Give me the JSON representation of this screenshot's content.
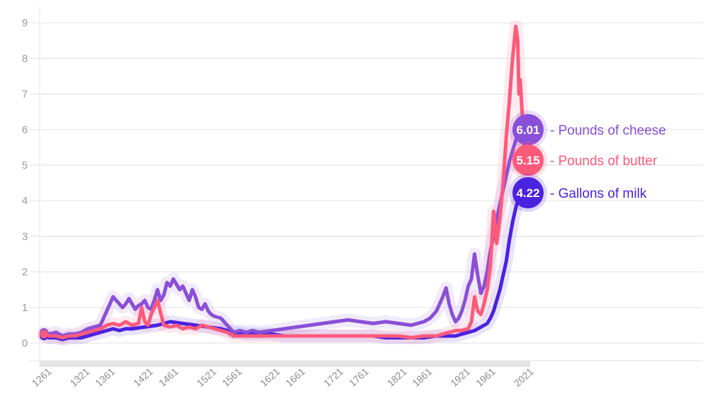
{
  "chart_data": {
    "type": "line",
    "title": "",
    "xlabel": "",
    "ylabel": "",
    "xlim": [
      1261,
      2021
    ],
    "ylim": [
      0,
      9
    ],
    "y_ticks": [
      "0",
      "1",
      "2",
      "3",
      "4",
      "5",
      "6",
      "7",
      "8",
      "9"
    ],
    "x_ticks": [
      "1261",
      "1321",
      "1361",
      "1421",
      "1461",
      "1521",
      "1561",
      "1621",
      "1661",
      "1721",
      "1761",
      "1821",
      "1861",
      "1921",
      "1961",
      "2021"
    ],
    "grid": "horizontal",
    "legend": "right, at line ends",
    "series": [
      {
        "name": "Pounds of cheese",
        "end_label": "6.01",
        "color": "#8a4fd8",
        "x": [
          1261,
          1270,
          1280,
          1290,
          1300,
          1310,
          1320,
          1330,
          1340,
          1350,
          1355,
          1360,
          1365,
          1370,
          1375,
          1380,
          1385,
          1390,
          1395,
          1400,
          1405,
          1410,
          1415,
          1420,
          1425,
          1430,
          1435,
          1440,
          1445,
          1450,
          1455,
          1460,
          1465,
          1470,
          1475,
          1480,
          1485,
          1490,
          1495,
          1500,
          1505,
          1510,
          1515,
          1520,
          1525,
          1530,
          1540,
          1550,
          1560,
          1570,
          1580,
          1590,
          1600,
          1620,
          1640,
          1660,
          1680,
          1700,
          1720,
          1740,
          1760,
          1780,
          1800,
          1820,
          1840,
          1850,
          1860,
          1870,
          1880,
          1885,
          1890,
          1895,
          1900,
          1905,
          1910,
          1915,
          1920,
          1925,
          1930,
          1935,
          1940,
          1945,
          1950,
          1955,
          1960,
          1965,
          1970,
          1975,
          1980,
          1985,
          1990,
          1995,
          2000,
          2005,
          2010,
          2015,
          2021
        ],
        "values": [
          0.3,
          0.25,
          0.3,
          0.2,
          0.25,
          0.25,
          0.3,
          0.4,
          0.45,
          0.5,
          0.7,
          0.9,
          1.1,
          1.3,
          1.2,
          1.1,
          1.0,
          1.1,
          1.25,
          1.1,
          0.95,
          1.05,
          1.1,
          1.2,
          1.0,
          0.95,
          1.2,
          1.5,
          1.2,
          1.35,
          1.7,
          1.6,
          1.8,
          1.65,
          1.5,
          1.6,
          1.4,
          1.2,
          1.5,
          1.3,
          1.0,
          0.95,
          1.1,
          0.9,
          0.8,
          0.75,
          0.7,
          0.5,
          0.3,
          0.35,
          0.3,
          0.35,
          0.3,
          0.35,
          0.4,
          0.45,
          0.5,
          0.55,
          0.6,
          0.65,
          0.6,
          0.55,
          0.6,
          0.55,
          0.5,
          0.55,
          0.6,
          0.7,
          0.9,
          1.1,
          1.3,
          1.55,
          1.1,
          0.8,
          0.6,
          0.7,
          0.9,
          1.2,
          1.6,
          1.8,
          2.5,
          1.9,
          1.4,
          1.6,
          2.0,
          2.6,
          3.0,
          3.5,
          3.9,
          4.3,
          4.7,
          5.1,
          5.4,
          5.7,
          6.0,
          6.3,
          6.01
        ]
      },
      {
        "name": "Pounds of butter",
        "end_label": "5.15",
        "color": "#fc5a7b",
        "x": [
          1261,
          1270,
          1280,
          1290,
          1300,
          1310,
          1320,
          1330,
          1340,
          1350,
          1360,
          1370,
          1380,
          1390,
          1400,
          1410,
          1415,
          1420,
          1425,
          1430,
          1440,
          1450,
          1460,
          1470,
          1480,
          1490,
          1500,
          1510,
          1520,
          1530,
          1540,
          1550,
          1560,
          1580,
          1600,
          1620,
          1640,
          1660,
          1680,
          1700,
          1720,
          1740,
          1760,
          1780,
          1800,
          1820,
          1840,
          1860,
          1880,
          1890,
          1900,
          1910,
          1920,
          1930,
          1935,
          1940,
          1945,
          1950,
          1955,
          1960,
          1965,
          1970,
          1975,
          1980,
          1985,
          1990,
          1995,
          2000,
          2005,
          2008,
          2010,
          2012,
          2015,
          2018,
          2021
        ],
        "values": [
          0.25,
          0.2,
          0.2,
          0.15,
          0.2,
          0.2,
          0.25,
          0.3,
          0.35,
          0.4,
          0.5,
          0.55,
          0.5,
          0.6,
          0.5,
          0.55,
          1.0,
          0.6,
          0.5,
          0.8,
          1.2,
          0.5,
          0.45,
          0.5,
          0.4,
          0.45,
          0.4,
          0.5,
          0.45,
          0.4,
          0.35,
          0.3,
          0.2,
          0.2,
          0.2,
          0.2,
          0.2,
          0.2,
          0.2,
          0.2,
          0.2,
          0.2,
          0.2,
          0.2,
          0.2,
          0.2,
          0.15,
          0.2,
          0.2,
          0.25,
          0.3,
          0.35,
          0.35,
          0.4,
          0.6,
          1.3,
          0.9,
          0.8,
          1.1,
          1.5,
          2.2,
          3.7,
          2.8,
          3.5,
          4.5,
          5.8,
          6.8,
          8.0,
          8.9,
          8.5,
          7.0,
          7.4,
          6.5,
          5.5,
          5.15
        ]
      },
      {
        "name": "Gallons of milk",
        "end_label": "4.22",
        "color": "#4a22e0",
        "x": [
          1261,
          1270,
          1280,
          1290,
          1300,
          1310,
          1320,
          1330,
          1340,
          1350,
          1360,
          1370,
          1380,
          1390,
          1400,
          1420,
          1440,
          1460,
          1480,
          1500,
          1520,
          1540,
          1560,
          1580,
          1600,
          1620,
          1640,
          1660,
          1680,
          1700,
          1720,
          1740,
          1760,
          1780,
          1800,
          1820,
          1840,
          1860,
          1880,
          1900,
          1910,
          1920,
          1930,
          1940,
          1945,
          1950,
          1955,
          1960,
          1965,
          1970,
          1975,
          1980,
          1985,
          1990,
          1995,
          2000,
          2005,
          2010,
          2015,
          2021
        ],
        "values": [
          0.2,
          0.15,
          0.15,
          0.1,
          0.15,
          0.15,
          0.15,
          0.2,
          0.25,
          0.3,
          0.35,
          0.4,
          0.35,
          0.4,
          0.4,
          0.45,
          0.5,
          0.6,
          0.55,
          0.5,
          0.45,
          0.4,
          0.3,
          0.25,
          0.25,
          0.25,
          0.2,
          0.2,
          0.2,
          0.2,
          0.2,
          0.2,
          0.2,
          0.2,
          0.15,
          0.15,
          0.15,
          0.15,
          0.2,
          0.2,
          0.2,
          0.25,
          0.3,
          0.35,
          0.4,
          0.45,
          0.5,
          0.55,
          0.7,
          0.9,
          1.2,
          1.5,
          1.9,
          2.3,
          2.9,
          3.4,
          3.8,
          4.1,
          4.3,
          4.22
        ]
      }
    ]
  }
}
